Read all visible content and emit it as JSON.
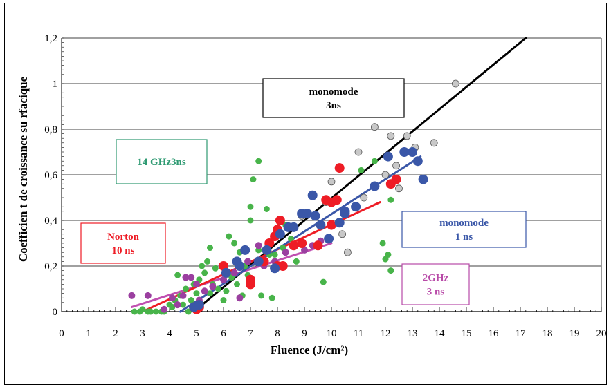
{
  "chart_data": {
    "type": "scatter",
    "xlabel": "Fluence (J/cm²)",
    "ylabel": "Coefficien t de croissance su rfacique",
    "xlim": [
      0,
      20
    ],
    "ylim": [
      0,
      1.2
    ],
    "x_ticks": [
      "0",
      "1",
      "2",
      "3",
      "4",
      "5",
      "6",
      "7",
      "8",
      "9",
      "10",
      "11",
      "12",
      "13",
      "14",
      "15",
      "16",
      "17",
      "18",
      "19",
      "20"
    ],
    "y_ticks": [
      "0",
      "0,2",
      "0,4",
      "0,6",
      "0,8",
      "1",
      "1,2"
    ],
    "grid": "horizontal",
    "annotations": [
      {
        "id": "mono3",
        "lines": [
          "monomode",
          "3ns"
        ],
        "color": "#000000"
      },
      {
        "id": "ghz14",
        "lines": [
          "14 GHz3ns"
        ],
        "color": "#2e9a72"
      },
      {
        "id": "norton",
        "lines": [
          "Norton",
          "10 ns"
        ],
        "color": "#ee1c25"
      },
      {
        "id": "mono1",
        "lines": [
          "monomode",
          "1 ns"
        ],
        "color": "#3a57a8"
      },
      {
        "id": "ghz2",
        "lines": [
          "2GHz",
          "3 ns"
        ],
        "color": "#b84aa8"
      }
    ],
    "series": [
      {
        "id": "mono3ns",
        "color": "#c8c8c8",
        "fit_color": "#000000",
        "fit": [
          [
            4.9,
            0.0
          ],
          [
            17.2,
            1.2
          ]
        ],
        "points": [
          [
            8.9,
            0.42
          ],
          [
            9.8,
            0.48
          ],
          [
            10.0,
            0.57
          ],
          [
            10.4,
            0.34
          ],
          [
            10.6,
            0.26
          ],
          [
            11.0,
            0.7
          ],
          [
            11.6,
            0.81
          ],
          [
            12.2,
            0.77
          ],
          [
            12.4,
            0.64
          ],
          [
            12.5,
            0.54
          ],
          [
            12.8,
            0.77
          ],
          [
            13.1,
            0.72
          ],
          [
            13.8,
            0.74
          ],
          [
            14.6,
            1.0
          ],
          [
            12.0,
            0.6
          ],
          [
            11.2,
            0.5
          ]
        ]
      },
      {
        "id": "ghz14",
        "color": "#48b44a",
        "fit_color": null,
        "fit": [],
        "points": [
          [
            2.7,
            0.0
          ],
          [
            2.9,
            0.0
          ],
          [
            3.0,
            0.01
          ],
          [
            3.2,
            0.0
          ],
          [
            3.5,
            0.0
          ],
          [
            3.7,
            0.0
          ],
          [
            3.8,
            0.0
          ],
          [
            4.0,
            0.03
          ],
          [
            4.1,
            0.02
          ],
          [
            4.2,
            0.05
          ],
          [
            4.4,
            0.07
          ],
          [
            4.5,
            0.03
          ],
          [
            4.6,
            0.1
          ],
          [
            4.7,
            0.0
          ],
          [
            4.8,
            0.05
          ],
          [
            4.9,
            0.12
          ],
          [
            5.0,
            0.08
          ],
          [
            5.1,
            0.14
          ],
          [
            5.2,
            0.2
          ],
          [
            5.3,
            0.17
          ],
          [
            5.4,
            0.22
          ],
          [
            5.5,
            0.08
          ],
          [
            5.6,
            0.12
          ],
          [
            5.7,
            0.19
          ],
          [
            5.8,
            0.1
          ],
          [
            6.0,
            0.05
          ],
          [
            6.1,
            0.09
          ],
          [
            6.2,
            0.33
          ],
          [
            6.3,
            0.15
          ],
          [
            6.4,
            0.3
          ],
          [
            6.5,
            0.12
          ],
          [
            6.6,
            0.26
          ],
          [
            6.7,
            0.07
          ],
          [
            6.8,
            0.2
          ],
          [
            6.9,
            0.16
          ],
          [
            7.0,
            0.46
          ],
          [
            7.0,
            0.4
          ],
          [
            7.1,
            0.58
          ],
          [
            7.3,
            0.66
          ],
          [
            7.3,
            0.27
          ],
          [
            7.4,
            0.07
          ],
          [
            7.6,
            0.45
          ],
          [
            7.7,
            0.25
          ],
          [
            7.8,
            0.06
          ],
          [
            7.9,
            0.25
          ],
          [
            8.0,
            0.2
          ],
          [
            8.2,
            0.28
          ],
          [
            8.3,
            0.38
          ],
          [
            8.5,
            0.32
          ],
          [
            8.7,
            0.22
          ],
          [
            9.7,
            0.13
          ],
          [
            11.1,
            0.62
          ],
          [
            11.6,
            0.66
          ],
          [
            11.9,
            0.3
          ],
          [
            12.0,
            0.23
          ],
          [
            12.1,
            0.25
          ],
          [
            12.2,
            0.49
          ],
          [
            12.2,
            0.18
          ],
          [
            5.5,
            0.28
          ],
          [
            4.3,
            0.16
          ],
          [
            3.3,
            0.0
          ]
        ]
      },
      {
        "id": "ghz2",
        "color": "#9b3fa0",
        "fit_color": "#c04fb0",
        "fit": [
          [
            2.6,
            0.02
          ],
          [
            10.0,
            0.3
          ]
        ],
        "points": [
          [
            2.6,
            0.07
          ],
          [
            3.2,
            0.07
          ],
          [
            3.8,
            0.01
          ],
          [
            4.1,
            0.06
          ],
          [
            4.3,
            0.03
          ],
          [
            4.5,
            0.07
          ],
          [
            4.6,
            0.15
          ],
          [
            4.8,
            0.15
          ],
          [
            5.0,
            0.12
          ],
          [
            5.1,
            0.05
          ],
          [
            5.3,
            0.09
          ],
          [
            5.6,
            0.11
          ],
          [
            6.0,
            0.14
          ],
          [
            6.4,
            0.17
          ],
          [
            6.6,
            0.06
          ],
          [
            6.9,
            0.22
          ],
          [
            7.3,
            0.29
          ],
          [
            7.5,
            0.2
          ],
          [
            7.9,
            0.22
          ],
          [
            8.3,
            0.26
          ],
          [
            8.6,
            0.29
          ],
          [
            9.0,
            0.27
          ],
          [
            9.3,
            0.29
          ],
          [
            9.6,
            0.31
          ]
        ]
      },
      {
        "id": "norton",
        "color": "#ee1c25",
        "fit_color": "#ee1c25",
        "fit": [
          [
            3.0,
            0.0
          ],
          [
            11.8,
            0.48
          ]
        ],
        "points": [
          [
            4.9,
            0.02
          ],
          [
            5.0,
            0.01
          ],
          [
            5.1,
            0.02
          ],
          [
            6.0,
            0.2
          ],
          [
            7.0,
            0.12
          ],
          [
            7.0,
            0.14
          ],
          [
            7.5,
            0.22
          ],
          [
            7.7,
            0.3
          ],
          [
            7.9,
            0.33
          ],
          [
            8.0,
            0.2
          ],
          [
            8.0,
            0.36
          ],
          [
            8.1,
            0.4
          ],
          [
            8.2,
            0.2
          ],
          [
            8.6,
            0.29
          ],
          [
            8.9,
            0.3
          ],
          [
            9.5,
            0.29
          ],
          [
            9.8,
            0.49
          ],
          [
            10.0,
            0.48
          ],
          [
            10.0,
            0.38
          ],
          [
            10.2,
            0.49
          ],
          [
            10.3,
            0.63
          ],
          [
            12.2,
            0.56
          ],
          [
            12.4,
            0.58
          ]
        ]
      },
      {
        "id": "mono1ns",
        "color": "#3a57a8",
        "fit_color": "#3a57a8",
        "fit": [
          [
            4.4,
            0.0
          ],
          [
            13.3,
            0.68
          ]
        ],
        "points": [
          [
            4.9,
            0.02
          ],
          [
            5.1,
            0.03
          ],
          [
            6.1,
            0.17
          ],
          [
            6.5,
            0.22
          ],
          [
            6.6,
            0.2
          ],
          [
            6.8,
            0.27
          ],
          [
            7.3,
            0.22
          ],
          [
            7.6,
            0.27
          ],
          [
            7.9,
            0.19
          ],
          [
            8.1,
            0.34
          ],
          [
            8.4,
            0.37
          ],
          [
            8.6,
            0.37
          ],
          [
            8.9,
            0.43
          ],
          [
            9.1,
            0.43
          ],
          [
            9.3,
            0.51
          ],
          [
            9.4,
            0.42
          ],
          [
            9.6,
            0.38
          ],
          [
            9.9,
            0.32
          ],
          [
            10.3,
            0.39
          ],
          [
            10.5,
            0.44
          ],
          [
            10.5,
            0.43
          ],
          [
            10.9,
            0.46
          ],
          [
            11.6,
            0.55
          ],
          [
            12.1,
            0.68
          ],
          [
            12.7,
            0.7
          ],
          [
            13.0,
            0.7
          ],
          [
            13.2,
            0.66
          ],
          [
            13.4,
            0.58
          ]
        ]
      }
    ]
  }
}
